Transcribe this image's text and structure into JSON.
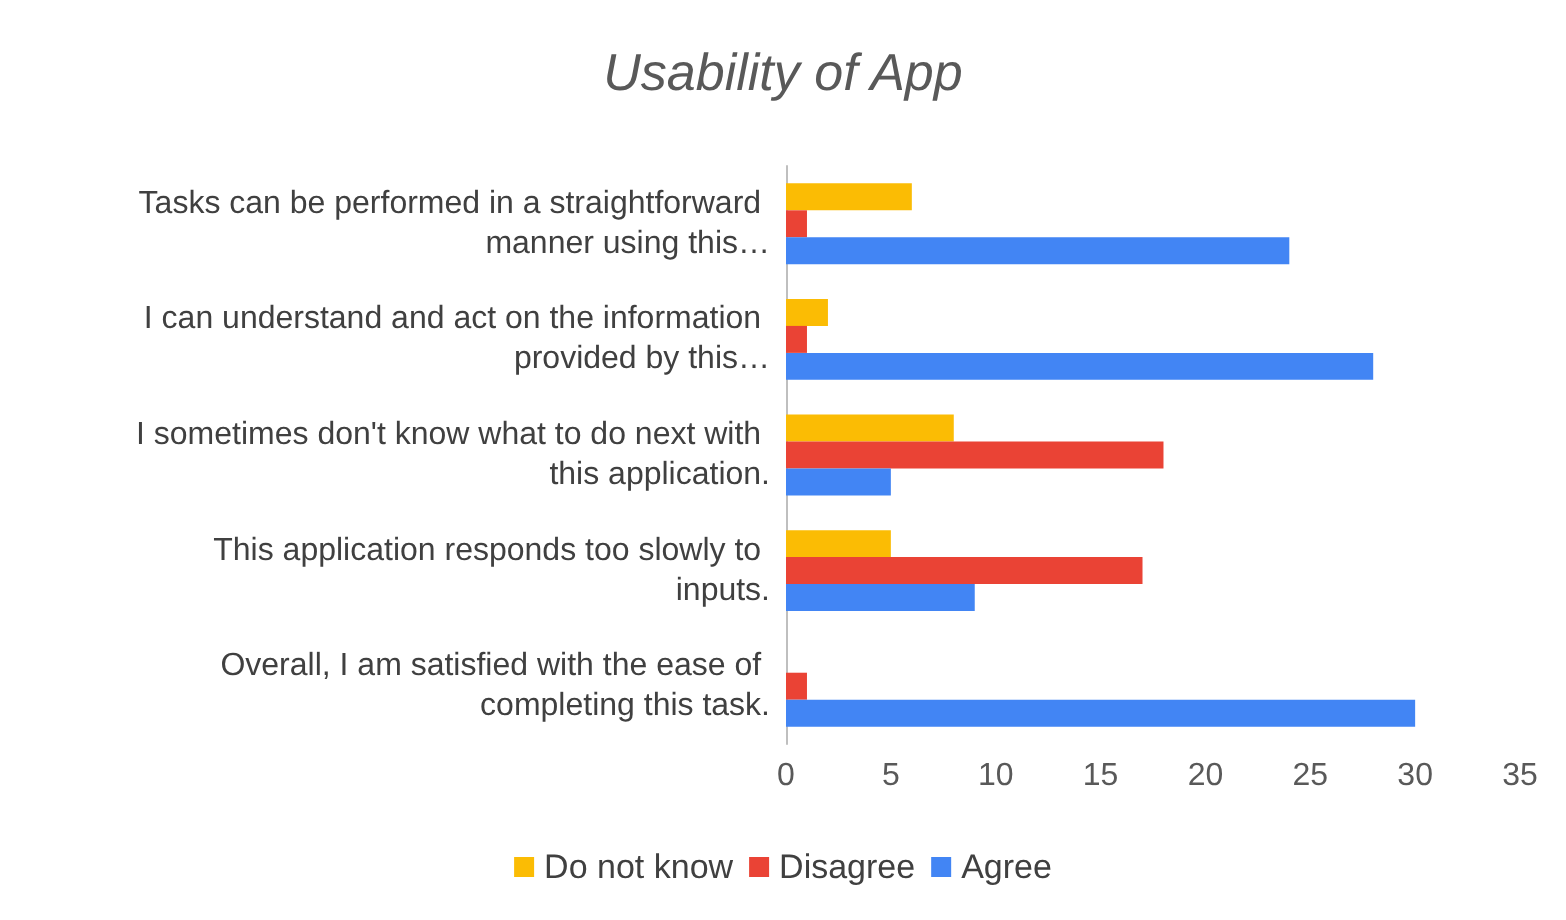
{
  "chart_data": {
    "type": "bar",
    "orientation": "horizontal",
    "title": "Usability of App",
    "categories": [
      "Tasks can be performed in a straightforward manner using this…",
      "I can understand and act on the information provided by this…",
      "I sometimes don't know what to do next with this application.",
      "This application responds too slowly to inputs.",
      "Overall, I am satisfied with the ease of completing this task."
    ],
    "series": [
      {
        "name": "Do not know",
        "color": "#fbbc04",
        "values": [
          6,
          2,
          8,
          5,
          0
        ]
      },
      {
        "name": "Disagree",
        "color": "#ea4335",
        "values": [
          1,
          1,
          18,
          17,
          1
        ]
      },
      {
        "name": "Agree",
        "color": "#4285f4",
        "values": [
          24,
          28,
          5,
          9,
          30
        ]
      }
    ],
    "xlim": [
      0,
      35
    ],
    "xticks": [
      0,
      5,
      10,
      15,
      20,
      25,
      30,
      35
    ],
    "grid": false,
    "legend": "bottom"
  }
}
